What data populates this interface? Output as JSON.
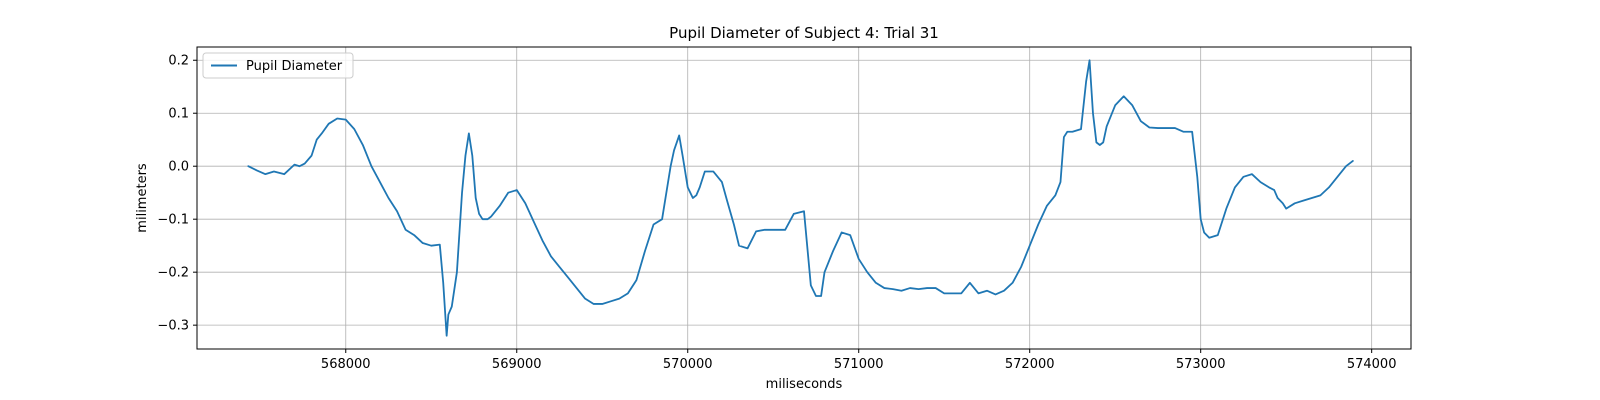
{
  "chart_data": {
    "type": "line",
    "title": "Pupil Diameter of Subject 4: Trial 31",
    "xlabel": "miliseconds",
    "ylabel": "milimeters",
    "xlim": [
      567130,
      574230
    ],
    "ylim": [
      -0.345,
      0.225
    ],
    "xticks": [
      568000,
      569000,
      570000,
      571000,
      572000,
      573000,
      574000
    ],
    "yticks": [
      -0.3,
      -0.2,
      -0.1,
      0.0,
      0.1,
      0.2
    ],
    "xtick_labels": [
      "568000",
      "569000",
      "570000",
      "571000",
      "572000",
      "573000",
      "574000"
    ],
    "ytick_labels": [
      "−0.3",
      "−0.2",
      "−0.1",
      "0.0",
      "0.1",
      "0.2"
    ],
    "grid": true,
    "legend_position": "top-left",
    "series": [
      {
        "name": "Pupil Diameter",
        "color": "#1f77b4",
        "x": [
          567430,
          567480,
          567530,
          567580,
          567640,
          567700,
          567730,
          567760,
          567800,
          567830,
          567860,
          567900,
          567950,
          568000,
          568050,
          568100,
          568150,
          568200,
          568250,
          568300,
          568350,
          568400,
          568450,
          568500,
          568550,
          568570,
          568590,
          568600,
          568620,
          568650,
          568680,
          568700,
          568720,
          568740,
          568760,
          568780,
          568800,
          568830,
          568850,
          568900,
          568950,
          569000,
          569050,
          569100,
          569150,
          569200,
          569250,
          569300,
          569350,
          569400,
          569450,
          569500,
          569550,
          569600,
          569650,
          569700,
          569750,
          569800,
          569850,
          569880,
          569900,
          569920,
          569950,
          569970,
          570000,
          570030,
          570050,
          570070,
          570100,
          570150,
          570200,
          570230,
          570270,
          570300,
          570350,
          570400,
          570450,
          570480,
          570520,
          570570,
          570620,
          570680,
          570720,
          570750,
          570780,
          570800,
          570850,
          570900,
          570950,
          571000,
          571050,
          571100,
          571150,
          571200,
          571250,
          571300,
          571350,
          571400,
          571450,
          571500,
          571550,
          571600,
          571650,
          571700,
          571750,
          571800,
          571850,
          571900,
          571950,
          572000,
          572050,
          572100,
          572150,
          572180,
          572200,
          572220,
          572250,
          572300,
          572330,
          572350,
          572370,
          572390,
          572410,
          572430,
          572450,
          572500,
          572550,
          572600,
          572650,
          572700,
          572750,
          572800,
          572850,
          572900,
          572950,
          572980,
          573000,
          573020,
          573050,
          573100,
          573150,
          573200,
          573250,
          573300,
          573350,
          573400,
          573430,
          573450,
          573480,
          573500,
          573550,
          573600,
          573650,
          573700,
          573750,
          573800,
          573850,
          573890
        ],
        "values": [
          0.0,
          -0.008,
          -0.015,
          -0.01,
          -0.015,
          0.003,
          0.0,
          0.005,
          0.02,
          0.05,
          0.062,
          0.08,
          0.09,
          0.088,
          0.07,
          0.04,
          0.0,
          -0.03,
          -0.06,
          -0.085,
          -0.12,
          -0.13,
          -0.145,
          -0.15,
          -0.148,
          -0.22,
          -0.32,
          -0.28,
          -0.265,
          -0.2,
          -0.05,
          0.02,
          0.062,
          0.02,
          -0.06,
          -0.09,
          -0.1,
          -0.1,
          -0.095,
          -0.075,
          -0.05,
          -0.045,
          -0.07,
          -0.105,
          -0.14,
          -0.17,
          -0.19,
          -0.21,
          -0.23,
          -0.25,
          -0.26,
          -0.26,
          -0.255,
          -0.25,
          -0.24,
          -0.215,
          -0.16,
          -0.11,
          -0.1,
          -0.04,
          0.0,
          0.03,
          0.058,
          0.02,
          -0.04,
          -0.06,
          -0.055,
          -0.04,
          -0.01,
          -0.01,
          -0.03,
          -0.065,
          -0.11,
          -0.15,
          -0.155,
          -0.123,
          -0.12,
          -0.12,
          -0.12,
          -0.12,
          -0.09,
          -0.085,
          -0.225,
          -0.245,
          -0.245,
          -0.2,
          -0.16,
          -0.125,
          -0.13,
          -0.175,
          -0.2,
          -0.22,
          -0.23,
          -0.232,
          -0.235,
          -0.23,
          -0.232,
          -0.23,
          -0.23,
          -0.24,
          -0.24,
          -0.24,
          -0.22,
          -0.24,
          -0.235,
          -0.242,
          -0.235,
          -0.22,
          -0.19,
          -0.15,
          -0.11,
          -0.075,
          -0.055,
          -0.03,
          0.055,
          0.065,
          0.065,
          0.07,
          0.16,
          0.2,
          0.1,
          0.045,
          0.04,
          0.045,
          0.075,
          0.115,
          0.132,
          0.115,
          0.085,
          0.073,
          0.072,
          0.072,
          0.072,
          0.065,
          0.065,
          -0.02,
          -0.1,
          -0.125,
          -0.135,
          -0.13,
          -0.08,
          -0.04,
          -0.02,
          -0.015,
          -0.03,
          -0.04,
          -0.045,
          -0.06,
          -0.07,
          -0.08,
          -0.07,
          -0.065,
          -0.06,
          -0.055,
          -0.04,
          -0.02,
          0.0,
          0.01
        ]
      }
    ]
  }
}
